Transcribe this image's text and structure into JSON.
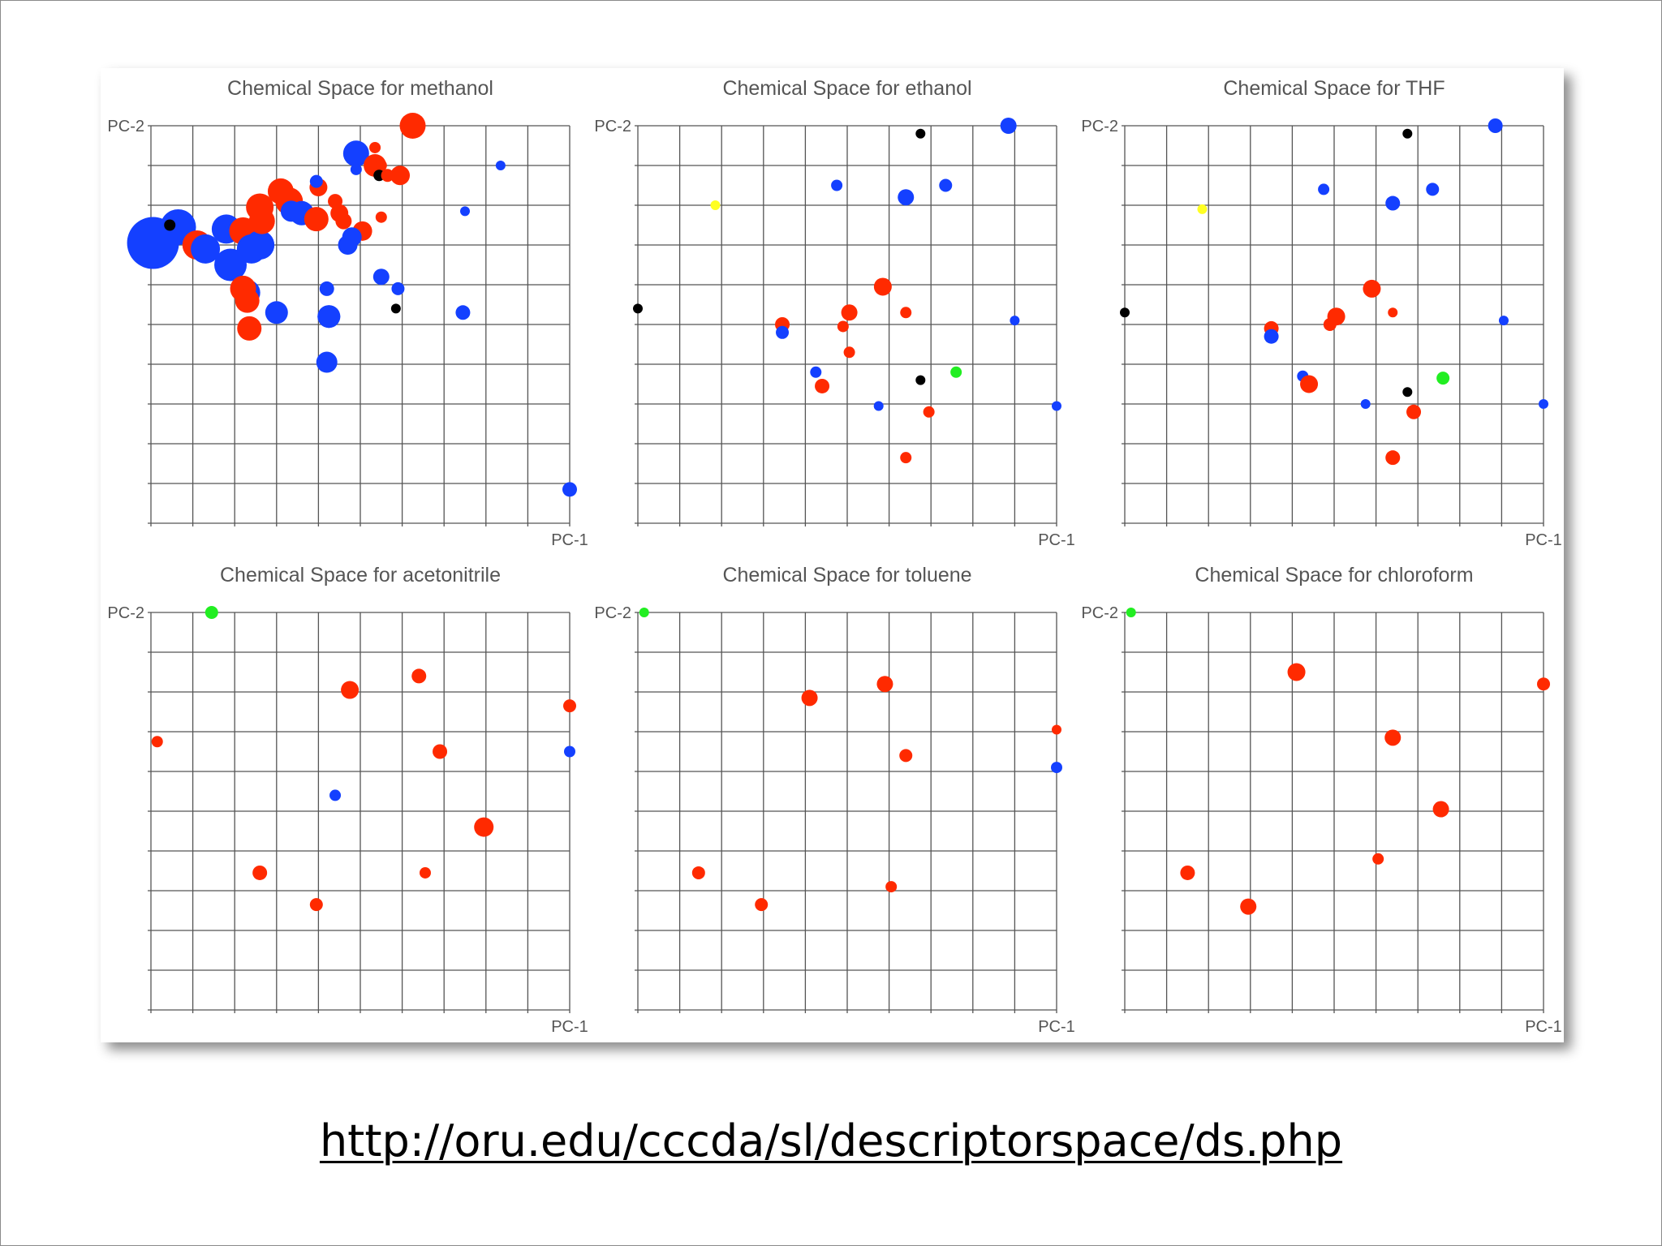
{
  "colors": {
    "red": "#ff2a00",
    "blue": "#1440ff",
    "black": "#000000",
    "green": "#22ee22",
    "yellow": "#ffff22"
  },
  "link": {
    "text": "http://oru.edu/cccda/sl/descriptorspace/ds.php"
  },
  "chart_data": [
    {
      "type": "scatter",
      "title": "Chemical Space for methanol",
      "xlabel": "PC-1",
      "ylabel": "PC-2",
      "xlim": [
        0,
        10
      ],
      "ylim": [
        0,
        10
      ],
      "grid": true,
      "points": [
        {
          "x": 0.05,
          "y": 7.05,
          "r": 32,
          "c": "blue"
        },
        {
          "x": 0.65,
          "y": 7.45,
          "r": 22,
          "c": "blue"
        },
        {
          "x": 1.1,
          "y": 7.0,
          "r": 18,
          "c": "red"
        },
        {
          "x": 1.3,
          "y": 6.9,
          "r": 18,
          "c": "blue"
        },
        {
          "x": 1.8,
          "y": 7.4,
          "r": 18,
          "c": "blue"
        },
        {
          "x": 2.2,
          "y": 7.35,
          "r": 17,
          "c": "red"
        },
        {
          "x": 1.9,
          "y": 6.5,
          "r": 20,
          "c": "blue"
        },
        {
          "x": 2.4,
          "y": 6.9,
          "r": 18,
          "c": "blue"
        },
        {
          "x": 2.6,
          "y": 7.0,
          "r": 18,
          "c": "blue"
        },
        {
          "x": 2.3,
          "y": 5.8,
          "r": 16,
          "c": "blue"
        },
        {
          "x": 2.2,
          "y": 5.9,
          "r": 16,
          "c": "red"
        },
        {
          "x": 2.65,
          "y": 7.6,
          "r": 16,
          "c": "red"
        },
        {
          "x": 2.6,
          "y": 7.95,
          "r": 17,
          "c": "red"
        },
        {
          "x": 3.1,
          "y": 8.35,
          "r": 16,
          "c": "red"
        },
        {
          "x": 3.3,
          "y": 8.1,
          "r": 17,
          "c": "red"
        },
        {
          "x": 3.35,
          "y": 7.85,
          "r": 13,
          "c": "blue"
        },
        {
          "x": 3.6,
          "y": 7.8,
          "r": 15,
          "c": "blue"
        },
        {
          "x": 3.95,
          "y": 7.65,
          "r": 15,
          "c": "red"
        },
        {
          "x": 4.0,
          "y": 8.45,
          "r": 11,
          "c": "red"
        },
        {
          "x": 3.95,
          "y": 8.6,
          "r": 8,
          "c": "blue"
        },
        {
          "x": 4.4,
          "y": 8.1,
          "r": 9,
          "c": "red"
        },
        {
          "x": 4.5,
          "y": 7.8,
          "r": 11,
          "c": "red"
        },
        {
          "x": 4.6,
          "y": 7.6,
          "r": 10,
          "c": "red"
        },
        {
          "x": 5.05,
          "y": 7.35,
          "r": 12,
          "c": "red"
        },
        {
          "x": 4.8,
          "y": 7.2,
          "r": 12,
          "c": "blue"
        },
        {
          "x": 4.7,
          "y": 7.0,
          "r": 12,
          "c": "blue"
        },
        {
          "x": 4.9,
          "y": 9.3,
          "r": 16,
          "c": "blue"
        },
        {
          "x": 5.35,
          "y": 9.0,
          "r": 14,
          "c": "red"
        },
        {
          "x": 5.35,
          "y": 9.45,
          "r": 7,
          "c": "red"
        },
        {
          "x": 5.5,
          "y": 9.0,
          "r": 7,
          "c": "red"
        },
        {
          "x": 4.9,
          "y": 8.9,
          "r": 7,
          "c": "blue"
        },
        {
          "x": 5.45,
          "y": 8.75,
          "r": 7,
          "c": "black"
        },
        {
          "x": 5.65,
          "y": 8.75,
          "r": 8,
          "c": "red"
        },
        {
          "x": 5.95,
          "y": 8.75,
          "r": 12,
          "c": "red"
        },
        {
          "x": 6.25,
          "y": 10.0,
          "r": 16,
          "c": "red"
        },
        {
          "x": 5.5,
          "y": 7.7,
          "r": 7,
          "c": "red"
        },
        {
          "x": 0.45,
          "y": 7.5,
          "r": 7,
          "c": "black"
        },
        {
          "x": 2.3,
          "y": 5.6,
          "r": 15,
          "c": "red"
        },
        {
          "x": 2.35,
          "y": 4.9,
          "r": 15,
          "c": "red"
        },
        {
          "x": 3.0,
          "y": 5.3,
          "r": 14,
          "c": "blue"
        },
        {
          "x": 4.25,
          "y": 5.2,
          "r": 14,
          "c": "blue"
        },
        {
          "x": 4.25,
          "y": 5.2,
          "r": 14,
          "c": "blue"
        },
        {
          "x": 4.2,
          "y": 4.05,
          "r": 13,
          "c": "blue"
        },
        {
          "x": 4.2,
          "y": 5.9,
          "r": 9,
          "c": "blue"
        },
        {
          "x": 5.5,
          "y": 6.2,
          "r": 10,
          "c": "blue"
        },
        {
          "x": 5.9,
          "y": 5.9,
          "r": 8,
          "c": "blue"
        },
        {
          "x": 5.85,
          "y": 5.4,
          "r": 6,
          "c": "black"
        },
        {
          "x": 7.45,
          "y": 5.3,
          "r": 9,
          "c": "blue"
        },
        {
          "x": 7.5,
          "y": 7.85,
          "r": 6,
          "c": "blue"
        },
        {
          "x": 8.35,
          "y": 9.0,
          "r": 6,
          "c": "blue"
        },
        {
          "x": 10.0,
          "y": 0.85,
          "r": 9,
          "c": "blue"
        }
      ]
    },
    {
      "type": "scatter",
      "title": "Chemical Space for ethanol",
      "xlabel": "PC-1",
      "ylabel": "PC-2",
      "xlim": [
        0,
        10
      ],
      "ylim": [
        0,
        10
      ],
      "grid": true,
      "points": [
        {
          "x": 0.0,
          "y": 5.4,
          "r": 6,
          "c": "black"
        },
        {
          "x": 1.85,
          "y": 8.0,
          "r": 6,
          "c": "yellow"
        },
        {
          "x": 3.45,
          "y": 5.0,
          "r": 9,
          "c": "red"
        },
        {
          "x": 3.45,
          "y": 4.8,
          "r": 8,
          "c": "blue"
        },
        {
          "x": 4.75,
          "y": 8.5,
          "r": 7,
          "c": "blue"
        },
        {
          "x": 4.25,
          "y": 3.8,
          "r": 7,
          "c": "blue"
        },
        {
          "x": 4.4,
          "y": 3.45,
          "r": 9,
          "c": "red"
        },
        {
          "x": 5.05,
          "y": 5.3,
          "r": 10,
          "c": "red"
        },
        {
          "x": 4.9,
          "y": 4.95,
          "r": 7,
          "c": "red"
        },
        {
          "x": 5.05,
          "y": 4.3,
          "r": 7,
          "c": "red"
        },
        {
          "x": 5.85,
          "y": 5.95,
          "r": 11,
          "c": "red"
        },
        {
          "x": 6.4,
          "y": 8.2,
          "r": 10,
          "c": "blue"
        },
        {
          "x": 6.75,
          "y": 9.8,
          "r": 6,
          "c": "black"
        },
        {
          "x": 6.4,
          "y": 5.3,
          "r": 7,
          "c": "red"
        },
        {
          "x": 6.75,
          "y": 3.6,
          "r": 6,
          "c": "black"
        },
        {
          "x": 5.75,
          "y": 2.95,
          "r": 6,
          "c": "blue"
        },
        {
          "x": 6.95,
          "y": 2.8,
          "r": 7,
          "c": "red"
        },
        {
          "x": 6.4,
          "y": 1.65,
          "r": 7,
          "c": "red"
        },
        {
          "x": 7.35,
          "y": 8.5,
          "r": 8,
          "c": "blue"
        },
        {
          "x": 7.6,
          "y": 3.8,
          "r": 7,
          "c": "green"
        },
        {
          "x": 8.85,
          "y": 10.0,
          "r": 10,
          "c": "blue"
        },
        {
          "x": 9.0,
          "y": 5.1,
          "r": 6,
          "c": "blue"
        },
        {
          "x": 10.0,
          "y": 2.95,
          "r": 6,
          "c": "blue"
        }
      ]
    },
    {
      "type": "scatter",
      "title": "Chemical Space for THF",
      "xlabel": "PC-1",
      "ylabel": "PC-2",
      "xlim": [
        0,
        10
      ],
      "ylim": [
        0,
        10
      ],
      "grid": true,
      "points": [
        {
          "x": 0.0,
          "y": 5.3,
          "r": 6,
          "c": "black"
        },
        {
          "x": 1.85,
          "y": 7.9,
          "r": 6,
          "c": "yellow"
        },
        {
          "x": 3.5,
          "y": 4.9,
          "r": 9,
          "c": "red"
        },
        {
          "x": 3.5,
          "y": 4.7,
          "r": 9,
          "c": "blue"
        },
        {
          "x": 4.75,
          "y": 8.4,
          "r": 7,
          "c": "blue"
        },
        {
          "x": 4.25,
          "y": 3.7,
          "r": 7,
          "c": "blue"
        },
        {
          "x": 4.4,
          "y": 3.5,
          "r": 11,
          "c": "red"
        },
        {
          "x": 5.05,
          "y": 5.2,
          "r": 11,
          "c": "red"
        },
        {
          "x": 4.9,
          "y": 5.0,
          "r": 8,
          "c": "red"
        },
        {
          "x": 5.9,
          "y": 5.9,
          "r": 11,
          "c": "red"
        },
        {
          "x": 6.4,
          "y": 8.05,
          "r": 9,
          "c": "blue"
        },
        {
          "x": 6.75,
          "y": 9.8,
          "r": 6,
          "c": "black"
        },
        {
          "x": 6.4,
          "y": 5.3,
          "r": 6,
          "c": "red"
        },
        {
          "x": 6.75,
          "y": 3.3,
          "r": 6,
          "c": "black"
        },
        {
          "x": 5.75,
          "y": 3.0,
          "r": 6,
          "c": "blue"
        },
        {
          "x": 6.9,
          "y": 2.8,
          "r": 9,
          "c": "red"
        },
        {
          "x": 6.4,
          "y": 1.65,
          "r": 9,
          "c": "red"
        },
        {
          "x": 7.35,
          "y": 8.4,
          "r": 8,
          "c": "blue"
        },
        {
          "x": 7.6,
          "y": 3.65,
          "r": 8,
          "c": "green"
        },
        {
          "x": 8.85,
          "y": 10.0,
          "r": 9,
          "c": "blue"
        },
        {
          "x": 9.05,
          "y": 5.1,
          "r": 6,
          "c": "blue"
        },
        {
          "x": 10.0,
          "y": 3.0,
          "r": 6,
          "c": "blue"
        }
      ]
    },
    {
      "type": "scatter",
      "title": "Chemical Space for acetonitrile",
      "xlabel": "PC-1",
      "ylabel": "PC-2",
      "xlim": [
        0,
        10
      ],
      "ylim": [
        0,
        10
      ],
      "grid": true,
      "points": [
        {
          "x": 1.45,
          "y": 10.0,
          "r": 8,
          "c": "green"
        },
        {
          "x": 0.15,
          "y": 6.75,
          "r": 7,
          "c": "red"
        },
        {
          "x": 4.75,
          "y": 8.05,
          "r": 11,
          "c": "red"
        },
        {
          "x": 6.4,
          "y": 8.4,
          "r": 9,
          "c": "red"
        },
        {
          "x": 6.9,
          "y": 6.5,
          "r": 9,
          "c": "red"
        },
        {
          "x": 10.0,
          "y": 7.65,
          "r": 8,
          "c": "red"
        },
        {
          "x": 10.0,
          "y": 6.5,
          "r": 7,
          "c": "blue"
        },
        {
          "x": 4.4,
          "y": 5.4,
          "r": 7,
          "c": "blue"
        },
        {
          "x": 7.95,
          "y": 4.6,
          "r": 12,
          "c": "red"
        },
        {
          "x": 2.6,
          "y": 3.45,
          "r": 9,
          "c": "red"
        },
        {
          "x": 6.55,
          "y": 3.45,
          "r": 7,
          "c": "red"
        },
        {
          "x": 3.95,
          "y": 2.65,
          "r": 8,
          "c": "red"
        }
      ]
    },
    {
      "type": "scatter",
      "title": "Chemical Space for toluene",
      "xlabel": "PC-1",
      "ylabel": "PC-2",
      "xlim": [
        0,
        10
      ],
      "ylim": [
        0,
        10
      ],
      "grid": true,
      "points": [
        {
          "x": 0.15,
          "y": 10.0,
          "r": 6,
          "c": "green"
        },
        {
          "x": 4.1,
          "y": 7.85,
          "r": 10,
          "c": "red"
        },
        {
          "x": 5.9,
          "y": 8.2,
          "r": 10,
          "c": "red"
        },
        {
          "x": 10.0,
          "y": 7.05,
          "r": 6,
          "c": "red"
        },
        {
          "x": 6.4,
          "y": 6.4,
          "r": 8,
          "c": "red"
        },
        {
          "x": 10.0,
          "y": 6.1,
          "r": 7,
          "c": "blue"
        },
        {
          "x": 1.45,
          "y": 3.45,
          "r": 8,
          "c": "red"
        },
        {
          "x": 2.95,
          "y": 2.65,
          "r": 8,
          "c": "red"
        },
        {
          "x": 6.05,
          "y": 3.1,
          "r": 7,
          "c": "red"
        }
      ]
    },
    {
      "type": "scatter",
      "title": "Chemical Space for chloroform",
      "xlabel": "PC-1",
      "ylabel": "PC-2",
      "xlim": [
        0,
        10
      ],
      "ylim": [
        0,
        10
      ],
      "grid": true,
      "points": [
        {
          "x": 0.15,
          "y": 10.0,
          "r": 6,
          "c": "green"
        },
        {
          "x": 4.1,
          "y": 8.5,
          "r": 11,
          "c": "red"
        },
        {
          "x": 10.0,
          "y": 8.2,
          "r": 8,
          "c": "red"
        },
        {
          "x": 6.4,
          "y": 6.85,
          "r": 10,
          "c": "red"
        },
        {
          "x": 7.55,
          "y": 5.05,
          "r": 10,
          "c": "red"
        },
        {
          "x": 6.05,
          "y": 3.8,
          "r": 7,
          "c": "red"
        },
        {
          "x": 1.5,
          "y": 3.45,
          "r": 9,
          "c": "red"
        },
        {
          "x": 2.95,
          "y": 2.6,
          "r": 10,
          "c": "red"
        }
      ]
    }
  ]
}
